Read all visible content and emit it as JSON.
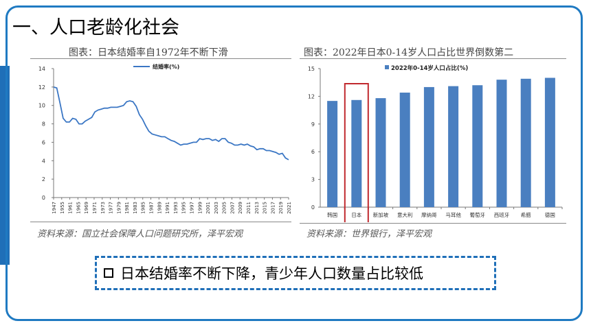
{
  "slide": {
    "title": "一、人口老龄化社会",
    "callout": "日本结婚率不断下降，青少年人口数量占比较低"
  },
  "left": {
    "caption": "图表：日本结婚率自1972年不断下滑",
    "source": "资料来源：国立社会保障人口问题研究所，泽平宏观"
  },
  "right": {
    "caption": "图表：2022年日本0-14岁人口占比世界倒数第二",
    "source": "资料来源：世界银行，泽平宏观"
  },
  "colors": {
    "accent": "#1f7ac2",
    "line": "#3a76c4",
    "bar": "#4a7fc0",
    "highlight": "#c0282d"
  },
  "chart_data": [
    {
      "type": "line",
      "series": [
        {
          "name": "结婚率(%)",
          "x": [
            1947,
            1948,
            1949,
            1950,
            1951,
            1952,
            1953,
            1954,
            1955,
            1956,
            1957,
            1958,
            1959,
            1960,
            1961,
            1962,
            1963,
            1964,
            1965,
            1966,
            1967,
            1968,
            1969,
            1970,
            1971,
            1972,
            1973,
            1974,
            1975,
            1976,
            1977,
            1978,
            1979,
            1980,
            1981,
            1982,
            1983,
            1984,
            1985,
            1986,
            1987,
            1988,
            1989,
            1990,
            1991,
            1992,
            1993,
            1994,
            1995,
            1996,
            1997,
            1998,
            1999,
            2000,
            2001,
            2002,
            2003,
            2004,
            2005,
            2006,
            2007,
            2008,
            2009,
            2010,
            2011,
            2012,
            2013,
            2014,
            2015,
            2016,
            2017,
            2018,
            2019,
            2020,
            2021
          ],
          "values": [
            12.0,
            11.9,
            10.3,
            8.6,
            8.2,
            8.2,
            8.6,
            8.5,
            8.0,
            8.0,
            8.3,
            8.5,
            8.7,
            9.3,
            9.5,
            9.6,
            9.7,
            9.7,
            9.8,
            9.8,
            9.8,
            9.9,
            10.0,
            10.4,
            10.5,
            10.4,
            9.9,
            9.0,
            8.5,
            7.8,
            7.2,
            6.9,
            6.8,
            6.7,
            6.6,
            6.6,
            6.4,
            6.2,
            6.1,
            5.9,
            5.7,
            5.8,
            5.8,
            5.9,
            6.0,
            6.0,
            6.4,
            6.3,
            6.4,
            6.4,
            6.2,
            6.3,
            6.1,
            6.4,
            6.4,
            6.0,
            5.9,
            5.7,
            5.7,
            5.8,
            5.7,
            5.8,
            5.6,
            5.5,
            5.2,
            5.3,
            5.3,
            5.1,
            5.1,
            5.0,
            4.9,
            4.7,
            4.8,
            4.3,
            4.1
          ]
        }
      ],
      "xticks": [
        "1947",
        "1955",
        "1961",
        "1965",
        "1969",
        "1971",
        "1973",
        "1977",
        "1979",
        "1981",
        "1983",
        "1985",
        "1987",
        "1989",
        "1991",
        "1993",
        "1995",
        "1997",
        "1999",
        "2001",
        "2003",
        "2005",
        "2007",
        "2009",
        "2011",
        "2013",
        "2015",
        "2017",
        "2019",
        "2021"
      ],
      "ylim": [
        0,
        14
      ],
      "yticks": [
        "0",
        "2",
        "4",
        "6",
        "8",
        "10",
        "12",
        "14"
      ]
    },
    {
      "type": "bar",
      "series": [
        {
          "name": "2022年0-14岁人口占比(%)",
          "values": [
            11.5,
            11.6,
            11.8,
            12.4,
            13.0,
            13.1,
            13.2,
            13.8,
            13.9,
            14.0
          ]
        }
      ],
      "categories": [
        "韩国",
        "日本",
        "新加坡",
        "意大利",
        "摩纳哥",
        "马耳他",
        "葡萄牙",
        "西班牙",
        "希腊",
        "德国"
      ],
      "highlight": "日本",
      "ylim": [
        0,
        15
      ],
      "yticks": [
        "0",
        "3",
        "6",
        "9",
        "12",
        "15"
      ]
    }
  ]
}
